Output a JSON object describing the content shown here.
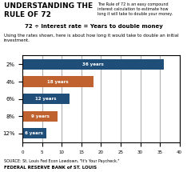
{
  "chart_data": {
    "type": "bar",
    "orientation": "horizontal",
    "title": "UNDERSTANDING THE\nRULE OF 72",
    "subtitle": "The Rule of 72 is an easy compound\ninterest calculation to estimate how\nlong it will take to double your money.",
    "annotations": [
      "72 ÷ Interest rate = Years to double money",
      "Using the rates shown, here is about how long it would take to double an initial investment.",
      "SOURCE: St. Louis Fed Econ Lowdown, \"It's Your Paycheck.\"",
      "FEDERAL RESERVE BANK of ST. LOUIS"
    ],
    "categories": [
      "12%",
      "8%",
      "6%",
      "4%",
      "2%"
    ],
    "values": [
      6,
      9,
      12,
      18,
      36
    ],
    "value_labels": [
      "6 years",
      "9 years",
      "12 years",
      "18 years",
      "36 years"
    ],
    "data_labels": true,
    "colors": [
      "#1f4e79",
      "#c0622f",
      "#1f4e79",
      "#c0622f",
      "#1f4e79"
    ],
    "xlim": [
      0,
      40
    ],
    "xticks": [
      0,
      5,
      10,
      15,
      20,
      25,
      30,
      35,
      40
    ],
    "grid": true
  }
}
